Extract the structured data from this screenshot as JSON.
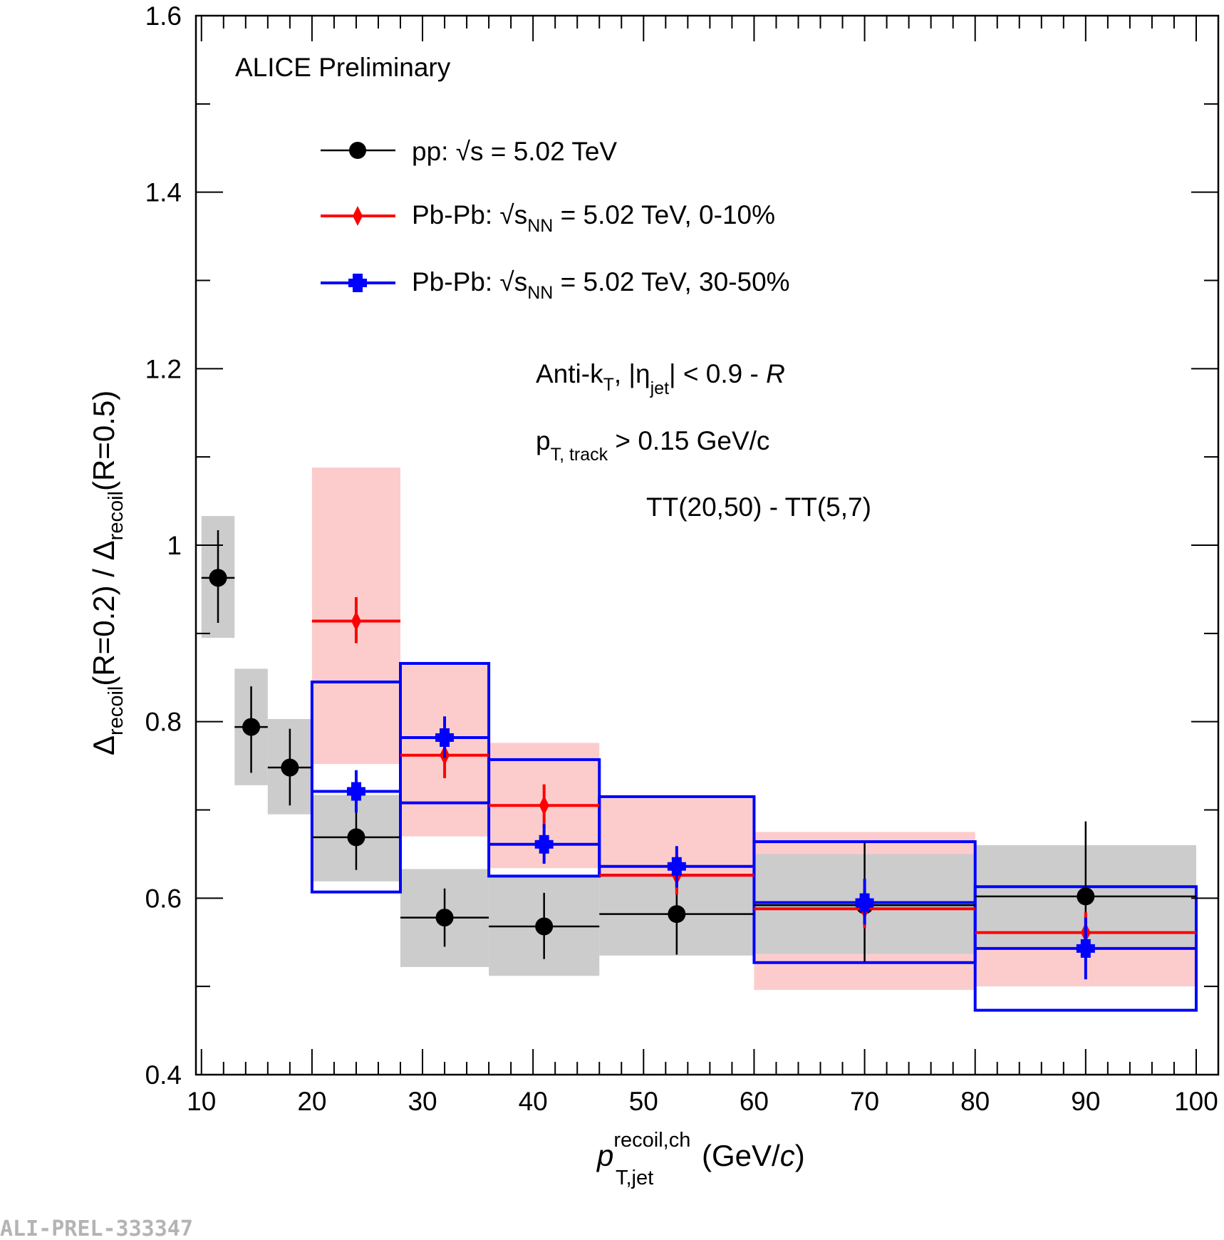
{
  "chart_data": {
    "type": "scatter",
    "watermark": "ALI-PREL-333347",
    "title": "ALICE Preliminary",
    "xlabel": {
      "main": "p",
      "sup": "recoil,ch",
      "sub": "T,jet",
      "unit_pre": "(GeV/",
      "unit_c": "c",
      "unit_post": ")"
    },
    "ylabel": {
      "d1": "Δ",
      "s1": "recoil",
      "m1": "(R=0.2) / ",
      "d2": "Δ",
      "s2": "recoil",
      "m2": "(R=0.5)"
    },
    "xlim": [
      9.5,
      102
    ],
    "ylim": [
      0.4,
      1.6
    ],
    "xticks": [
      10,
      20,
      30,
      40,
      50,
      60,
      70,
      80,
      90,
      100
    ],
    "xtick_labels": [
      "10",
      "20",
      "30",
      "40",
      "50",
      "60",
      "70",
      "80",
      "90",
      "100"
    ],
    "yticks": [
      0.4,
      0.6,
      0.8,
      1.0,
      1.2,
      1.4,
      1.6
    ],
    "ytick_labels": [
      "0.4",
      "0.6",
      "0.8",
      "1",
      "1.2",
      "1.4",
      "1.6"
    ],
    "legend": [
      {
        "pre": "pp: ",
        "s": "s",
        "snn": "",
        "post": " = 5.02 TeV"
      },
      {
        "pre": "Pb-Pb: ",
        "s": "s",
        "snn": "NN",
        "post": " = 5.02 TeV, 0-10%"
      },
      {
        "pre": "Pb-Pb: ",
        "s": "s",
        "snn": "NN",
        "post": " = 5.02 TeV, 30-50%"
      }
    ],
    "annotations": {
      "algo_pre": "Anti-k",
      "algo_sub": "T",
      "algo_mid": ", |η",
      "algo_sub2": "jet",
      "algo_post": "| < 0.9 - ",
      "algo_R": "R",
      "track_p": "p",
      "track_sub": "T, track",
      "track_post": " > 0.15 GeV/c",
      "tt": "TT(20,50) - TT(5,7)"
    },
    "series": [
      {
        "name": "pp: √s = 5.02 TeV",
        "color": "#000000",
        "fill": "#cccccc",
        "marker": "circle",
        "points": [
          {
            "x": 11.5,
            "xlo": 10,
            "xhi": 13,
            "y": 0.963,
            "ylo": 0.912,
            "yhi": 1.017,
            "sys_lo": 0.895,
            "sys_hi": 1.033
          },
          {
            "x": 14.5,
            "xlo": 13,
            "xhi": 16,
            "y": 0.794,
            "ylo": 0.742,
            "yhi": 0.84,
            "sys_lo": 0.728,
            "sys_hi": 0.86
          },
          {
            "x": 18,
            "xlo": 16,
            "xhi": 20,
            "y": 0.748,
            "ylo": 0.705,
            "yhi": 0.792,
            "sys_lo": 0.695,
            "sys_hi": 0.803
          },
          {
            "x": 24,
            "xlo": 20,
            "xhi": 28,
            "y": 0.669,
            "ylo": 0.632,
            "yhi": 0.703,
            "sys_lo": 0.619,
            "sys_hi": 0.717
          },
          {
            "x": 32,
            "xlo": 28,
            "xhi": 36,
            "y": 0.578,
            "ylo": 0.545,
            "yhi": 0.611,
            "sys_lo": 0.522,
            "sys_hi": 0.633
          },
          {
            "x": 41,
            "xlo": 36,
            "xhi": 46,
            "y": 0.568,
            "ylo": 0.531,
            "yhi": 0.606,
            "sys_lo": 0.512,
            "sys_hi": 0.624
          },
          {
            "x": 53,
            "xlo": 46,
            "xhi": 60,
            "y": 0.582,
            "ylo": 0.536,
            "yhi": 0.627,
            "sys_lo": 0.535,
            "sys_hi": 0.627
          },
          {
            "x": 70,
            "xlo": 60,
            "xhi": 80,
            "y": 0.592,
            "ylo": 0.528,
            "yhi": 0.663,
            "sys_lo": 0.537,
            "sys_hi": 0.65
          },
          {
            "x": 90,
            "xlo": 80,
            "xhi": 100,
            "y": 0.602,
            "ylo": 0.518,
            "yhi": 0.687,
            "sys_lo": 0.545,
            "sys_hi": 0.66
          }
        ]
      },
      {
        "name": "Pb-Pb: √sNN = 5.02 TeV, 0-10%",
        "color": "#ff0000",
        "fill": "#fccccc",
        "marker": "diamond",
        "points": [
          {
            "x": 24,
            "xlo": 20,
            "xhi": 28,
            "y": 0.914,
            "ylo": 0.889,
            "yhi": 0.941,
            "sys_lo": 0.752,
            "sys_hi": 1.088
          },
          {
            "x": 32,
            "xlo": 28,
            "xhi": 36,
            "y": 0.762,
            "ylo": 0.736,
            "yhi": 0.788,
            "sys_lo": 0.67,
            "sys_hi": 0.864
          },
          {
            "x": 41,
            "xlo": 36,
            "xhi": 46,
            "y": 0.705,
            "ylo": 0.68,
            "yhi": 0.729,
            "sys_lo": 0.634,
            "sys_hi": 0.776
          },
          {
            "x": 53,
            "xlo": 46,
            "xhi": 60,
            "y": 0.626,
            "ylo": 0.604,
            "yhi": 0.648,
            "sys_lo": 0.625,
            "sys_hi": 0.713
          },
          {
            "x": 70,
            "xlo": 60,
            "xhi": 80,
            "y": 0.588,
            "ylo": 0.566,
            "yhi": 0.61,
            "sys_lo": 0.496,
            "sys_hi": 0.675
          },
          {
            "x": 90,
            "xlo": 80,
            "xhi": 100,
            "y": 0.561,
            "ylo": 0.537,
            "yhi": 0.584,
            "sys_lo": 0.5,
            "sys_hi": 0.62
          }
        ]
      },
      {
        "name": "Pb-Pb: √sNN = 5.02 TeV, 30-50%",
        "color": "#0000ff",
        "fill": "none",
        "marker": "cross",
        "points": [
          {
            "x": 24,
            "xlo": 20,
            "xhi": 28,
            "y": 0.721,
            "ylo": 0.697,
            "yhi": 0.745,
            "sys_lo": 0.607,
            "sys_hi": 0.845
          },
          {
            "x": 32,
            "xlo": 28,
            "xhi": 36,
            "y": 0.782,
            "ylo": 0.759,
            "yhi": 0.806,
            "sys_lo": 0.708,
            "sys_hi": 0.866
          },
          {
            "x": 41,
            "xlo": 36,
            "xhi": 46,
            "y": 0.661,
            "ylo": 0.639,
            "yhi": 0.684,
            "sys_lo": 0.625,
            "sys_hi": 0.757
          },
          {
            "x": 53,
            "xlo": 46,
            "xhi": 60,
            "y": 0.636,
            "ylo": 0.612,
            "yhi": 0.659,
            "sys_lo": 0.626,
            "sys_hi": 0.715
          },
          {
            "x": 70,
            "xlo": 60,
            "xhi": 80,
            "y": 0.595,
            "ylo": 0.57,
            "yhi": 0.622,
            "sys_lo": 0.527,
            "sys_hi": 0.664
          },
          {
            "x": 90,
            "xlo": 80,
            "xhi": 100,
            "y": 0.543,
            "ylo": 0.508,
            "yhi": 0.578,
            "sys_lo": 0.473,
            "sys_hi": 0.613
          }
        ]
      }
    ]
  }
}
